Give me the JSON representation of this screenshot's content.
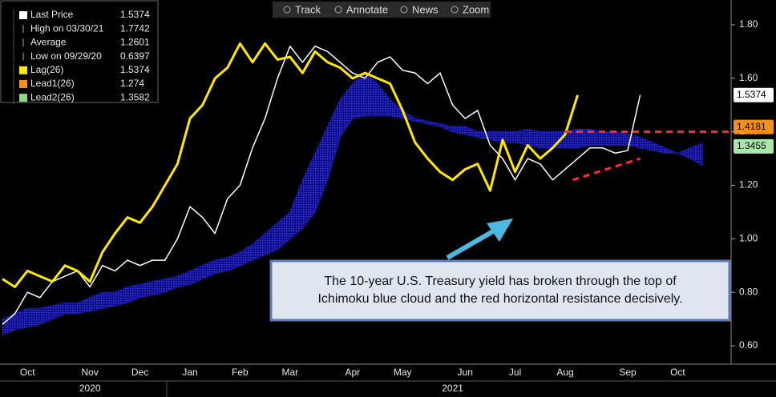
{
  "chart_data": {
    "type": "line",
    "toolbar": [
      "Track",
      "Annotate",
      "News",
      "Zoom"
    ],
    "categories": [
      null,
      null,
      "Oct",
      null,
      null,
      null,
      null,
      "Nov",
      null,
      null,
      null,
      "Dec",
      null,
      null,
      null,
      "Jan",
      null,
      null,
      null,
      "Feb",
      null,
      null,
      null,
      "Mar",
      null,
      null,
      null,
      null,
      "Apr",
      null,
      null,
      null,
      "May",
      null,
      null,
      null,
      null,
      "Jun",
      null,
      null,
      null,
      "Jul",
      null,
      null,
      null,
      "Aug",
      null,
      null,
      null,
      null,
      "Sep",
      null,
      null,
      null,
      "Oct",
      null,
      null,
      null
    ],
    "year_labels": [
      {
        "label": "2020",
        "index": 7
      },
      {
        "label": "2021",
        "index": 36
      }
    ],
    "ylim": [
      0.6,
      1.8
    ],
    "yticks": [
      {
        "value": 0.6,
        "label": "0.60"
      },
      {
        "value": 0.8,
        "label": "0.80"
      },
      {
        "value": 1.0,
        "label": "1.00"
      },
      {
        "value": 1.2,
        "label": "1.20"
      },
      {
        "value": 1.4,
        "label": "1.40"
      },
      {
        "value": 1.6,
        "label": "1.60"
      },
      {
        "value": 1.8,
        "label": "1.80"
      }
    ],
    "series": [
      {
        "name": "Last Price",
        "color": "#ffffff",
        "legend_value": 1.5374,
        "values": [
          0.68,
          0.72,
          0.8,
          0.78,
          0.84,
          0.86,
          0.88,
          0.82,
          0.9,
          0.88,
          0.92,
          0.9,
          0.92,
          0.92,
          1.0,
          1.12,
          1.08,
          1.02,
          1.15,
          1.2,
          1.34,
          1.45,
          1.6,
          1.72,
          1.66,
          1.72,
          1.7,
          1.66,
          1.62,
          1.6,
          1.66,
          1.68,
          1.63,
          1.62,
          1.58,
          1.62,
          1.5,
          1.45,
          1.48,
          1.35,
          1.3,
          1.22,
          1.3,
          1.28,
          1.22,
          1.26,
          1.3,
          1.34,
          1.34,
          1.32,
          1.33,
          1.5374,
          null,
          null,
          null,
          null,
          null,
          null
        ]
      },
      {
        "name": "Lag(26)",
        "color": "#ffe800",
        "legend_value": 1.5374,
        "values": [
          0.85,
          0.82,
          0.88,
          0.86,
          0.84,
          0.9,
          0.88,
          0.84,
          0.95,
          1.02,
          1.08,
          1.06,
          1.12,
          1.2,
          1.28,
          1.45,
          1.5,
          1.6,
          1.64,
          1.73,
          1.66,
          1.73,
          1.67,
          1.68,
          1.62,
          1.7,
          1.66,
          1.64,
          1.6,
          1.62,
          1.6,
          1.58,
          1.48,
          1.36,
          1.3,
          1.25,
          1.22,
          1.26,
          1.28,
          1.18,
          1.37,
          1.25,
          1.35,
          1.3,
          1.34,
          1.39,
          1.5374,
          null,
          null,
          null,
          null,
          null,
          null,
          null,
          null,
          null,
          null,
          null
        ]
      },
      {
        "name": "Lead1(26)",
        "color": "#f39019",
        "legend_value": 1.274,
        "values": [
          0.7,
          0.72,
          0.74,
          0.74,
          0.75,
          0.76,
          0.76,
          0.78,
          0.8,
          0.8,
          0.82,
          0.83,
          0.84,
          0.85,
          0.86,
          0.88,
          0.9,
          0.92,
          0.93,
          0.95,
          0.98,
          1.02,
          1.06,
          1.1,
          1.22,
          1.32,
          1.42,
          1.52,
          1.58,
          1.62,
          1.58,
          1.52,
          1.48,
          1.45,
          1.44,
          1.43,
          1.42,
          1.42,
          1.4,
          1.4,
          1.4,
          1.4,
          1.41,
          1.4,
          1.4,
          1.4,
          1.41,
          1.41,
          1.4,
          1.4,
          1.39,
          1.38,
          1.36,
          1.34,
          1.32,
          1.3,
          1.274,
          null
        ]
      },
      {
        "name": "Lead2(26)",
        "color": "#90d890",
        "legend_value": 1.3582,
        "values": [
          0.64,
          0.66,
          0.67,
          0.68,
          0.7,
          0.72,
          0.72,
          0.73,
          0.74,
          0.75,
          0.76,
          0.78,
          0.79,
          0.8,
          0.82,
          0.83,
          0.85,
          0.87,
          0.88,
          0.9,
          0.92,
          0.94,
          0.96,
          1.0,
          1.04,
          1.1,
          1.22,
          1.38,
          1.45,
          1.46,
          1.46,
          1.46,
          1.45,
          1.44,
          1.43,
          1.42,
          1.4,
          1.39,
          1.38,
          1.37,
          1.36,
          1.36,
          1.35,
          1.34,
          1.34,
          1.34,
          1.34,
          1.35,
          1.35,
          1.35,
          1.35,
          1.34,
          1.33,
          1.32,
          1.32,
          1.34,
          1.3582,
          null
        ]
      }
    ],
    "stats": [
      {
        "label": "High on 03/30/21",
        "value": 1.7742
      },
      {
        "label": "Average",
        "value": 1.2601
      },
      {
        "label": "Low on 09/29/20",
        "value": 0.6397
      }
    ],
    "tags": [
      {
        "value": 1.5374,
        "color": "#ffffff"
      },
      {
        "value": 1.4181,
        "color": "#f39019"
      },
      {
        "value": 1.3455,
        "color": "#a8e8a8"
      }
    ],
    "trendlines": [
      {
        "x": [
          45,
          58.5
        ],
        "values": [
          1.4,
          1.4
        ],
        "color": "#ff2a2a"
      },
      {
        "x": [
          45.6,
          51
        ],
        "values": [
          1.22,
          1.3
        ],
        "color": "#ff2a2a"
      }
    ],
    "annotation": [
      "The 10-year U.S. Treasury yield has broken through the top of",
      "Ichimoku blue cloud and the red horizontal resistance decisively."
    ]
  }
}
